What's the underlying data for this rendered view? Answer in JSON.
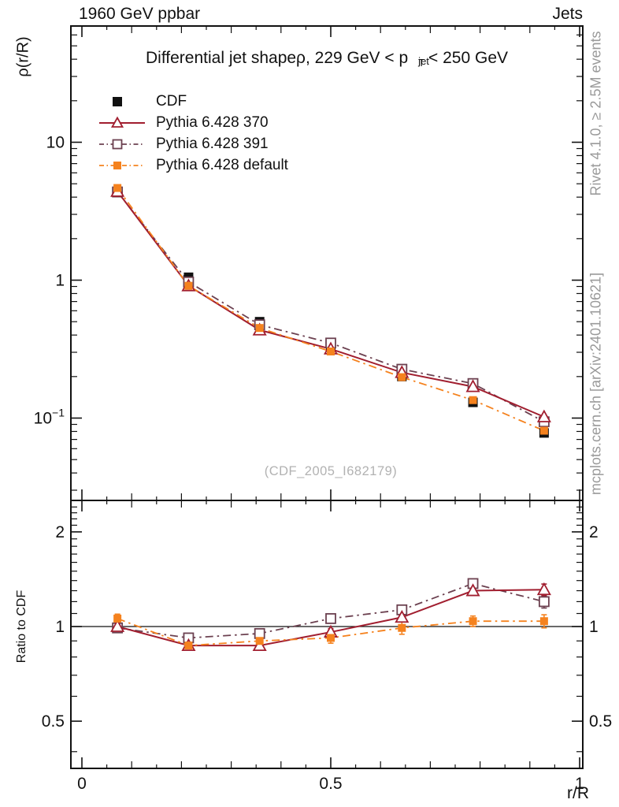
{
  "header": {
    "left": "1960 GeV ppbar",
    "right": "Jets"
  },
  "title": {
    "prefix": "Differential jet shapeρ, 229 GeV < p",
    "sup": "jet",
    "sub": "T",
    "suffix": " < 250 GeV"
  },
  "watermark": "(CDF_2005_I682179)",
  "side_notes": {
    "top": "Rivet 4.1.0, ≥ 2.5M events",
    "bottom": "mcplots.cern.ch [arXiv:2401.10621]"
  },
  "axes": {
    "y_label": "ρ(r/R)",
    "ratio_label": "Ratio to CDF",
    "x_label": "r/R",
    "main_yticks": [
      {
        "v": 10,
        "t": "10"
      },
      {
        "v": 1,
        "t": "1"
      },
      {
        "v": 0.1,
        "t": "10",
        "exp": "−1"
      }
    ],
    "ratio_yticks": [
      {
        "v": 2,
        "t": "2"
      },
      {
        "v": 1,
        "t": "1"
      },
      {
        "v": 0.5,
        "t": "0.5"
      }
    ],
    "xticks": [
      {
        "v": 0,
        "t": "0"
      },
      {
        "v": 0.5,
        "t": "0.5"
      },
      {
        "v": 1,
        "t": "1"
      }
    ]
  },
  "colors": {
    "cdf": "#111111",
    "pythia370": "#a11e2f",
    "pythia391": "#6c4150",
    "pythia_default": "#f5821e",
    "axis": "#111111",
    "gray_text": "#9a9a9a"
  },
  "chart_data": {
    "type": "line",
    "x_label": "r/R",
    "y_label": "ρ(r/R)",
    "ratio_label": "Ratio to CDF",
    "x": [
      0.0714,
      0.2143,
      0.3571,
      0.5,
      0.6429,
      0.7857,
      0.9286
    ],
    "main_ylog": true,
    "main_ylim": [
      0.0253,
      69.6
    ],
    "ratio_ylog": true,
    "ratio_ylim": [
      0.354,
      2.52
    ],
    "xlim": [
      -0.0222,
      1.0063
    ],
    "series": [
      {
        "name": "CDF",
        "color": "#111111",
        "marker": "filled-square",
        "line": "none",
        "values": [
          4.4,
          1.05,
          0.5,
          0.33,
          0.2,
          0.13,
          0.078
        ],
        "errors": [
          0.13,
          0.035,
          0.016,
          0.01,
          0.007,
          0.005,
          0.004
        ],
        "ratio": [
          1,
          1,
          1,
          1,
          1,
          1,
          1
        ]
      },
      {
        "name": "Pythia 6.428 370",
        "color": "#a11e2f",
        "marker": "open-triangle",
        "line": "solid",
        "values": [
          4.4,
          0.91,
          0.435,
          0.317,
          0.214,
          0.169,
          0.102
        ],
        "ratio": [
          1.0,
          0.87,
          0.87,
          0.96,
          1.07,
          1.3,
          1.31
        ],
        "ratio_errors": [
          0.02,
          0.02,
          0.02,
          0.025,
          0.03,
          0.045,
          0.055
        ]
      },
      {
        "name": "Pythia 6.428 391",
        "color": "#6c4150",
        "marker": "open-square",
        "line": "dashdot",
        "values": [
          4.36,
          0.97,
          0.475,
          0.35,
          0.226,
          0.178,
          0.094
        ],
        "ratio": [
          0.99,
          0.92,
          0.95,
          1.06,
          1.13,
          1.37,
          1.2
        ],
        "ratio_errors": [
          0.02,
          0.02,
          0.02,
          0.025,
          0.03,
          0.04,
          0.055
        ]
      },
      {
        "name": "Pythia 6.428 default",
        "color": "#f5821e",
        "marker": "filled-square-small",
        "line": "dashdot",
        "values": [
          4.66,
          0.91,
          0.45,
          0.304,
          0.198,
          0.135,
          0.081
        ],
        "ratio": [
          1.06,
          0.87,
          0.9,
          0.92,
          0.99,
          1.04,
          1.04
        ],
        "ratio_errors": [
          0.035,
          0.03,
          0.03,
          0.035,
          0.045,
          0.04,
          0.05
        ]
      }
    ]
  }
}
